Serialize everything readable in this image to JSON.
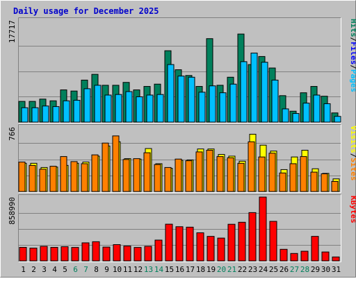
{
  "colors": {
    "background": "#c0c0c0",
    "panel": "#c0c0c0",
    "title": "#0000cc",
    "hits": "#00805c",
    "files": "#0000ff",
    "pages": "#00c0ff",
    "visits": "#ffff00",
    "sites": "#ff8000",
    "kbytes": "#ff0000",
    "weekend_label": "#00805c",
    "weekday_label": "#000000",
    "slash": "#000000"
  },
  "chart_data": {
    "type": "bar",
    "title": "Daily usage for December 2025",
    "categories": [
      "1",
      "2",
      "3",
      "4",
      "5",
      "6",
      "7",
      "8",
      "9",
      "10",
      "11",
      "12",
      "13",
      "14",
      "15",
      "16",
      "17",
      "18",
      "19",
      "20",
      "21",
      "22",
      "23",
      "24",
      "25",
      "26",
      "27",
      "28",
      "29",
      "30",
      "31"
    ],
    "weekend_days": [
      "6",
      "7",
      "13",
      "14",
      "20",
      "21",
      "27",
      "28"
    ],
    "panels": [
      {
        "id": "hits_files_pages",
        "max_label": "17717",
        "ylim": [
          0,
          17717
        ],
        "legend": [
          {
            "label": "Hits",
            "color": "#00805c"
          },
          {
            "label": "Files",
            "color": "#0000ff"
          },
          {
            "label": "Pages",
            "color": "#00c0ff"
          }
        ],
        "series": [
          {
            "name": "Hits",
            "color": "#00805c",
            "values": [
              3600,
              3600,
              4000,
              3700,
              5600,
              5400,
              7300,
              8300,
              6400,
              6400,
              6900,
              5600,
              6200,
              6600,
              12400,
              9100,
              8100,
              6200,
              14500,
              6400,
              7800,
              15300,
              10000,
              11400,
              9400,
              4600,
              1900,
              5100,
              6200,
              4500,
              1600
            ]
          },
          {
            "name": "Files",
            "color": "#0000ff",
            "values": [
              2500,
              2500,
              2800,
              2700,
              3700,
              3800,
              5800,
              6400,
              4700,
              4800,
              5300,
              4400,
              4700,
              4800,
              10000,
              8000,
              7800,
              5200,
              6300,
              5100,
              6600,
              10500,
              12000,
              10400,
              7300,
              2300,
              1500,
              3300,
              4700,
              3200,
              1000
            ]
          },
          {
            "name": "Pages",
            "color": "#00c0ff",
            "values": [
              2500,
              2500,
              2800,
              2700,
              3700,
              3800,
              5800,
              6400,
              4700,
              4800,
              5300,
              4400,
              4700,
              4800,
              10000,
              8000,
              7800,
              5200,
              6300,
              5100,
              6600,
              10500,
              12000,
              10400,
              7300,
              2300,
              1500,
              3300,
              4700,
              3200,
              1000
            ]
          }
        ]
      },
      {
        "id": "visits_sites",
        "max_label": "766",
        "ylim": [
          0,
          766
        ],
        "legend": [
          {
            "label": "Visits",
            "color": "#ffff00"
          },
          {
            "label": "Sites",
            "color": "#ff8000"
          }
        ],
        "series": [
          {
            "name": "Visits",
            "color": "#ffff00",
            "values": [
              335,
              335,
              285,
              290,
              310,
              335,
              350,
              420,
              540,
              590,
              390,
              385,
              510,
              330,
              275,
              370,
              375,
              505,
              505,
              440,
              420,
              360,
              680,
              550,
              480,
              260,
              410,
              490,
              270,
              215,
              150
            ]
          },
          {
            "name": "Sites",
            "color": "#ff8000",
            "values": [
              350,
              310,
              265,
              300,
              415,
              355,
              330,
              435,
              575,
              660,
              380,
              390,
              460,
              320,
              285,
              385,
              365,
              470,
              490,
              415,
              400,
              335,
              590,
              410,
              455,
              220,
              330,
              415,
              230,
              210,
              120
            ]
          }
        ]
      },
      {
        "id": "kbytes",
        "max_label": "858990",
        "ylim": [
          0,
          858990
        ],
        "legend": [
          {
            "label": "KBytes",
            "color": "#ff0000"
          }
        ],
        "series": [
          {
            "name": "KBytes",
            "color": "#ff0000",
            "values": [
              182000,
              172000,
              196000,
              182000,
              191000,
              181000,
              243000,
              258000,
              186000,
              219000,
              200000,
              181000,
              196000,
              280000,
              494000,
              460000,
              454000,
              378000,
              330000,
              307000,
              493000,
              520000,
              650000,
              858990,
              532000,
              156000,
              100000,
              130000,
              330000,
              120000,
              53000
            ]
          }
        ]
      }
    ]
  }
}
